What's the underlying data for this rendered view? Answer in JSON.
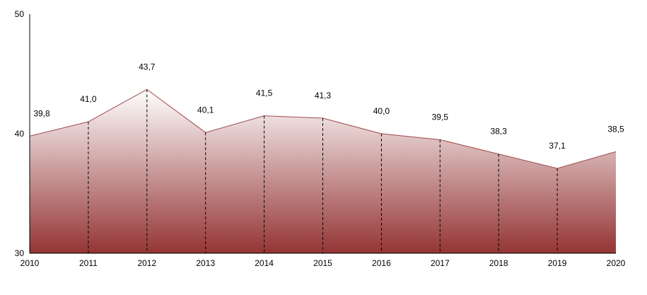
{
  "chart_data": {
    "type": "area",
    "title": "",
    "xlabel": "",
    "ylabel": "",
    "categories": [
      "2010",
      "2011",
      "2012",
      "2013",
      "2014",
      "2015",
      "2016",
      "2017",
      "2018",
      "2019",
      "2020"
    ],
    "values": [
      39.8,
      41.0,
      43.7,
      40.1,
      41.5,
      41.3,
      40.0,
      39.5,
      38.3,
      37.1,
      38.5
    ],
    "data_labels": [
      "39,8",
      "41,0",
      "43,7",
      "40,1",
      "41,5",
      "41,3",
      "40,0",
      "39,5",
      "38,3",
      "37,1",
      "38,5"
    ],
    "ylim": [
      30,
      50
    ],
    "yticks": [
      "30",
      "40",
      "50"
    ],
    "grid": false,
    "drop_lines": "dashed",
    "colors": {
      "line": "#a04a4a",
      "fill_top": "#ffffff",
      "fill_bottom": "#943434"
    }
  }
}
